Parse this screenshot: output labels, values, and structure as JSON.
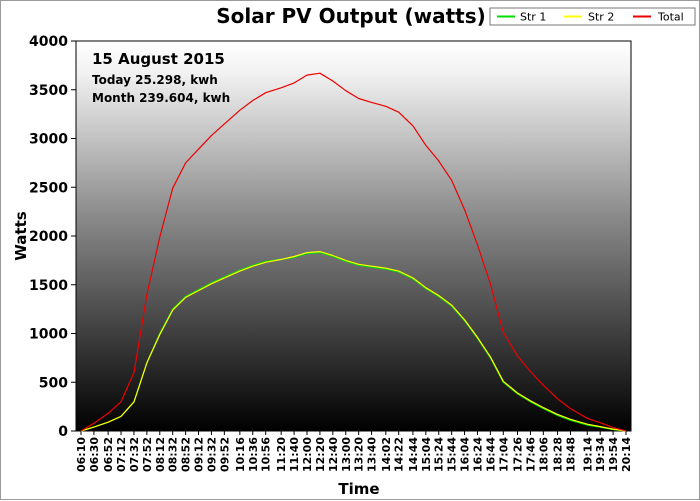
{
  "chart_data": {
    "type": "line",
    "title": "Solar PV Output (watts)",
    "xlabel": "Time",
    "ylabel": "Watts",
    "ylim": [
      0,
      4000
    ],
    "yticks": [
      0,
      500,
      1000,
      1500,
      2000,
      2500,
      3000,
      3500,
      4000
    ],
    "xticks": [
      "06:10",
      "06:30",
      "06:52",
      "07:12",
      "07:32",
      "07:52",
      "08:12",
      "08:32",
      "08:52",
      "09:12",
      "09:32",
      "09:52",
      "10:16",
      "10:36",
      "10:56",
      "11:20",
      "11:40",
      "12:00",
      "12:20",
      "12:40",
      "13:00",
      "13:20",
      "13:40",
      "14:02",
      "14:22",
      "14:44",
      "15:04",
      "15:24",
      "15:44",
      "16:04",
      "16:24",
      "16:44",
      "17:04",
      "17:26",
      "17:46",
      "18:06",
      "18:28",
      "18:48",
      "19:14",
      "19:34",
      "19:54",
      "20:14"
    ],
    "legend_position": "top-right",
    "grid": false,
    "annotations": {
      "date": "15 August 2015",
      "today": "Today 25.298, kwh",
      "month": "Month 239.604, kwh"
    },
    "colors": {
      "str1": "#00dd00",
      "str2": "#ffff00",
      "total": "#ee0000"
    },
    "series": [
      {
        "name": "Str 1",
        "x": [
          "06:10",
          "06:30",
          "06:52",
          "07:12",
          "07:32",
          "07:52",
          "08:12",
          "08:32",
          "08:52",
          "09:12",
          "09:32",
          "09:52",
          "10:16",
          "10:36",
          "10:56",
          "11:20",
          "11:40",
          "12:00",
          "12:20",
          "12:40",
          "13:00",
          "13:20",
          "13:40",
          "14:02",
          "14:22",
          "14:44",
          "15:04",
          "15:24",
          "15:44",
          "16:04",
          "16:24",
          "16:44",
          "17:04",
          "17:26",
          "17:46",
          "18:06",
          "18:28",
          "18:48",
          "19:14",
          "19:34",
          "19:54",
          "20:14"
        ],
        "values": [
          0,
          40,
          90,
          150,
          300,
          700,
          1000,
          1250,
          1380,
          1450,
          1520,
          1580,
          1650,
          1700,
          1740,
          1760,
          1780,
          1820,
          1830,
          1790,
          1740,
          1700,
          1680,
          1660,
          1630,
          1560,
          1460,
          1380,
          1280,
          1130,
          950,
          750,
          500,
          380,
          300,
          230,
          160,
          110,
          60,
          40,
          15,
          0
        ]
      },
      {
        "name": "Str 2",
        "x": [
          "06:10",
          "06:30",
          "06:52",
          "07:12",
          "07:32",
          "07:52",
          "08:12",
          "08:32",
          "08:52",
          "09:12",
          "09:32",
          "09:52",
          "10:16",
          "10:36",
          "10:56",
          "11:20",
          "11:40",
          "12:00",
          "12:20",
          "12:40",
          "13:00",
          "13:20",
          "13:40",
          "14:02",
          "14:22",
          "14:44",
          "15:04",
          "15:24",
          "15:44",
          "16:04",
          "16:24",
          "16:44",
          "17:04",
          "17:26",
          "17:46",
          "18:06",
          "18:28",
          "18:48",
          "19:14",
          "19:34",
          "19:54",
          "20:14"
        ],
        "values": [
          0,
          40,
          90,
          150,
          300,
          700,
          990,
          1240,
          1370,
          1440,
          1510,
          1570,
          1640,
          1690,
          1730,
          1760,
          1790,
          1830,
          1840,
          1800,
          1750,
          1710,
          1690,
          1670,
          1640,
          1570,
          1470,
          1390,
          1290,
          1140,
          960,
          760,
          510,
          390,
          310,
          240,
          170,
          120,
          70,
          45,
          20,
          0
        ]
      },
      {
        "name": "Total",
        "x": [
          "06:10",
          "06:30",
          "06:52",
          "07:12",
          "07:32",
          "07:52",
          "08:12",
          "08:32",
          "08:52",
          "09:12",
          "09:32",
          "09:52",
          "10:16",
          "10:36",
          "10:56",
          "11:20",
          "11:40",
          "12:00",
          "12:20",
          "12:40",
          "13:00",
          "13:20",
          "13:40",
          "14:02",
          "14:22",
          "14:44",
          "15:04",
          "15:24",
          "15:44",
          "16:04",
          "16:24",
          "16:44",
          "17:04",
          "17:26",
          "17:46",
          "18:06",
          "18:28",
          "18:48",
          "19:14",
          "19:34",
          "19:54",
          "20:14"
        ],
        "values": [
          0,
          80,
          180,
          300,
          600,
          1400,
          1990,
          2490,
          2750,
          2890,
          3030,
          3150,
          3290,
          3390,
          3470,
          3520,
          3570,
          3650,
          3670,
          3590,
          3490,
          3410,
          3370,
          3330,
          3270,
          3130,
          2930,
          2770,
          2570,
          2270,
          1910,
          1510,
          1010,
          770,
          610,
          470,
          330,
          230,
          130,
          85,
          35,
          0
        ]
      }
    ]
  }
}
